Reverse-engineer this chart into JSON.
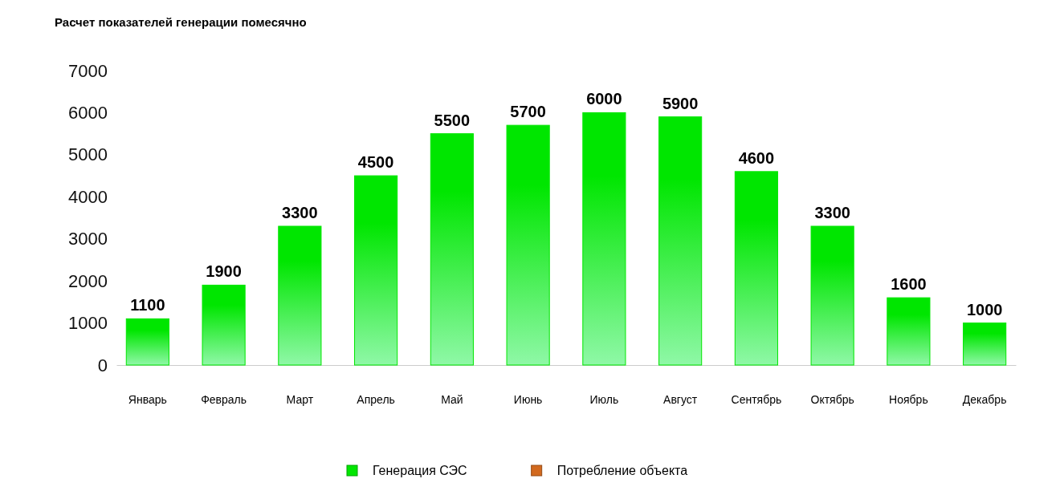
{
  "chart_data": {
    "type": "bar",
    "title": "Расчет показателей генерации помесячно",
    "categories": [
      "Январь",
      "Февраль",
      "Март",
      "Апрель",
      "Май",
      "Июнь",
      "Июль",
      "Август",
      "Сентябрь",
      "Октябрь",
      "Ноябрь",
      "Декабрь"
    ],
    "series": [
      {
        "name": "Генерация СЭС",
        "color": "#00e600",
        "values": [
          1100,
          1900,
          3300,
          4500,
          5500,
          5700,
          6000,
          5900,
          4600,
          3300,
          1600,
          1000
        ]
      },
      {
        "name": "Потребление объекта",
        "color": "#d2691e",
        "values": [
          null,
          null,
          null,
          null,
          null,
          null,
          null,
          null,
          null,
          null,
          null,
          null
        ]
      }
    ],
    "ylim": [
      0,
      7000
    ],
    "yticks": [
      0,
      1000,
      2000,
      3000,
      4000,
      5000,
      6000,
      7000
    ],
    "data_labels": true,
    "legend": "bottom",
    "grid": false
  }
}
